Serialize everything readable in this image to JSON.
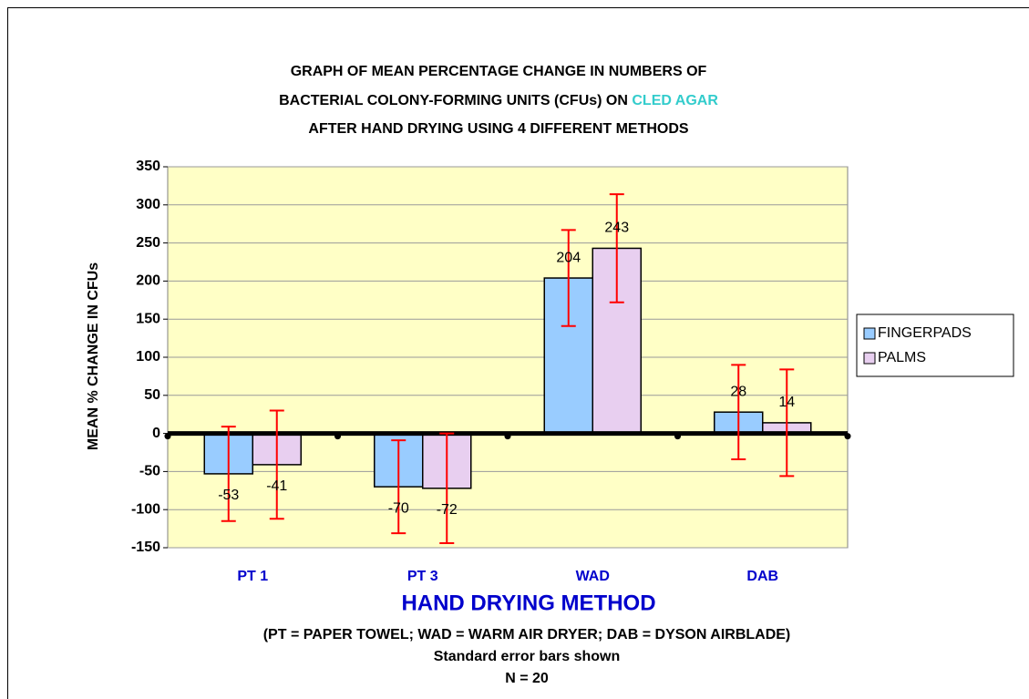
{
  "chart_data": {
    "type": "bar",
    "title_lines": [
      "GRAPH OF MEAN PERCENTAGE CHANGE IN NUMBERS OF",
      "BACTERIAL COLONY-FORMING UNITS (CFUs) ON",
      "AFTER HAND DRYING USING 4 DIFFERENT METHODS"
    ],
    "title_highlight": "CLED AGAR",
    "title_highlight_color": "#33cccc",
    "categories": [
      "PT 1",
      "PT 3",
      "WAD",
      "DAB"
    ],
    "series": [
      {
        "name": "FINGERPADS",
        "color": "#99ccff",
        "values": [
          -53,
          -70,
          204,
          28
        ],
        "errors": [
          62,
          61,
          63,
          62
        ]
      },
      {
        "name": "PALMS",
        "color": "#e8cff0",
        "values": [
          -41,
          -72,
          243,
          14
        ],
        "errors": [
          71,
          72,
          71,
          70
        ]
      }
    ],
    "ylim": [
      -150,
      350
    ],
    "yticks": [
      -150,
      -100,
      -50,
      0,
      50,
      100,
      150,
      200,
      250,
      300,
      350
    ],
    "y_label": "MEAN % CHANGE IN CFUs",
    "x_label": "HAND DRYING METHOD",
    "notes": [
      "(PT = PAPER TOWEL; WAD = WARM AIR DRYER; DAB = DYSON AIRBLADE)",
      "Standard error bars shown",
      "N = 20"
    ],
    "grid": true,
    "legend": "right"
  }
}
